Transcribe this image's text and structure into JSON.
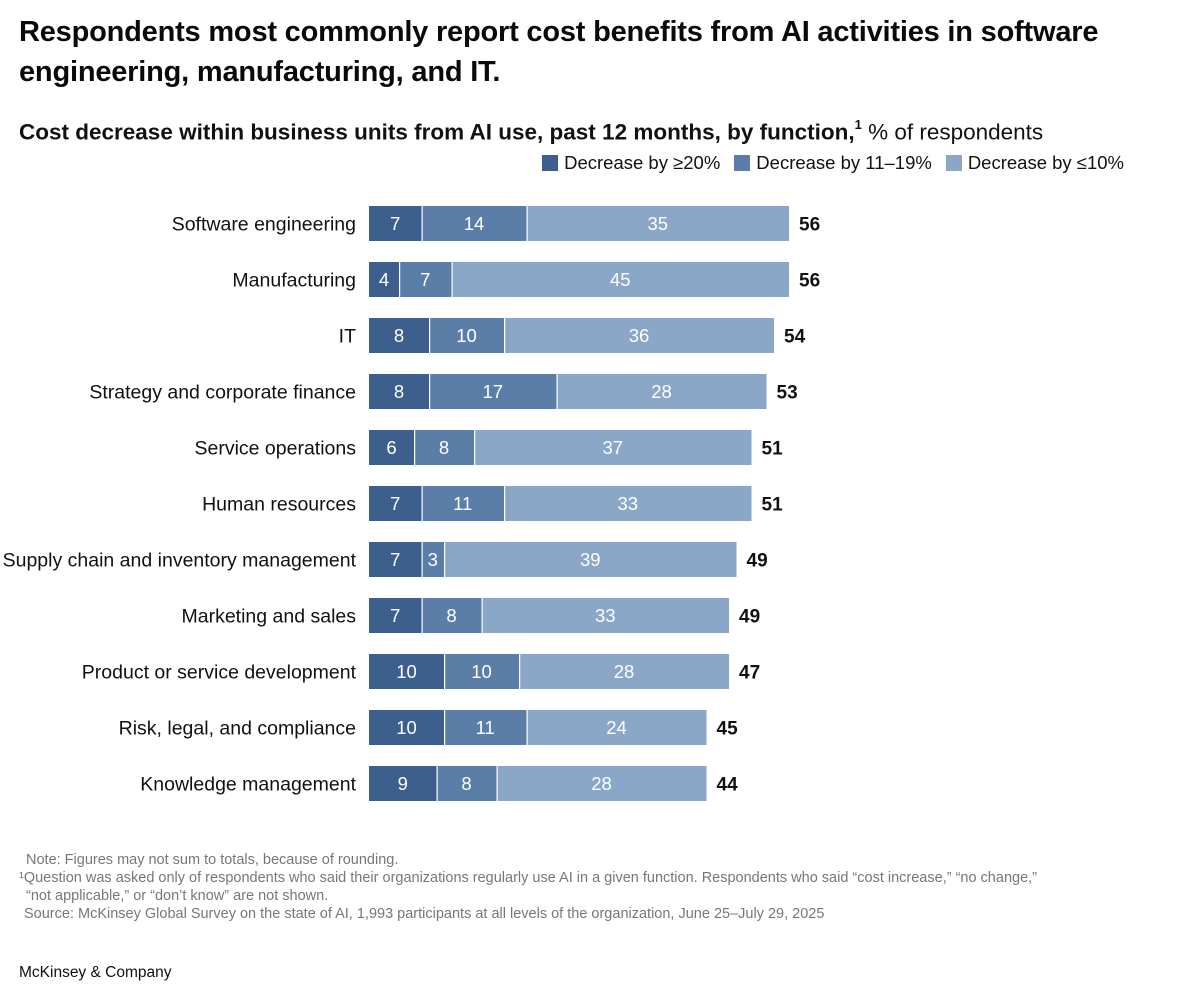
{
  "headline": "Respondents most commonly report cost benefits from AI activities in software engineering, manufacturing, and IT.",
  "subtitle": {
    "bold": "Cost decrease within business units from AI use, past 12 months, by function,",
    "footnote_mark": "1",
    "unit": " % of respondents"
  },
  "colors": {
    "series1": "#3c5f8e",
    "series2": "#5b7ea8",
    "series3": "#8aa7c8",
    "divider": "#ffffff",
    "text": "#111111"
  },
  "chart_data": {
    "type": "bar",
    "orientation": "horizontal",
    "stacked": true,
    "categories": [
      "Software engineering",
      "Manufacturing",
      "IT",
      "Strategy and corporate finance",
      "Service operations",
      "Human resources",
      "Supply chain and inventory management",
      "Marketing and sales",
      "Product or service development",
      "Risk, legal, and compliance",
      "Knowledge management"
    ],
    "series": [
      {
        "name": "Decrease by ≥20%",
        "values": [
          7,
          4,
          8,
          8,
          6,
          7,
          7,
          7,
          10,
          10,
          9
        ]
      },
      {
        "name": "Decrease by 11–19%",
        "values": [
          14,
          7,
          10,
          17,
          8,
          11,
          3,
          8,
          10,
          11,
          8
        ]
      },
      {
        "name": "Decrease by ≤10%",
        "values": [
          35,
          45,
          36,
          28,
          37,
          33,
          39,
          33,
          28,
          24,
          28
        ]
      }
    ],
    "totals": [
      56,
      56,
      54,
      53,
      51,
      51,
      49,
      49,
      47,
      45,
      44
    ],
    "legend_position": "top-right",
    "grid": false
  },
  "notes": [
    "Note: Figures may not sum to totals, because of rounding.",
    "¹Question was asked only of respondents who said their organizations regularly use AI in a given function. Respondents who said “cost increase,” “no change,”",
    "“not applicable,” or “don’t know” are not shown.",
    "Source: McKinsey Global Survey on the state of AI, 1,993 participants at all levels of the organization, June 25–July 29, 2025"
  ],
  "logo": "McKinsey & Company"
}
